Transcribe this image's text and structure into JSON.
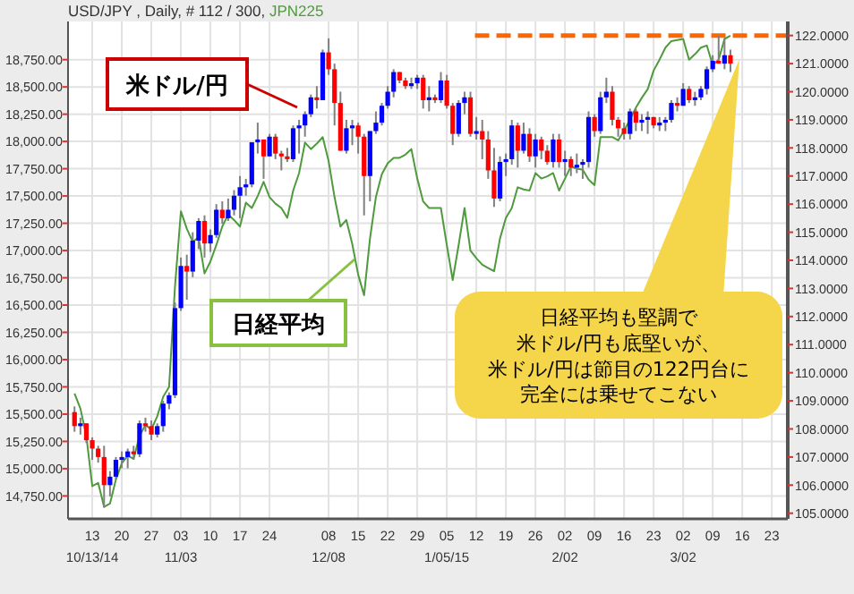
{
  "chart_data": {
    "type": "candlestick",
    "title": "USD/JPY , Daily, # 112 / 300,",
    "categories": [
      null,
      null,
      null,
      "13\n10/13/14",
      null,
      null,
      null,
      null,
      "20",
      null,
      null,
      null,
      null,
      "27",
      null,
      null,
      null,
      null,
      "03\n11/03",
      null,
      null,
      null,
      null,
      "10",
      null,
      null,
      null,
      null,
      "17",
      null,
      null,
      null,
      null,
      "24",
      null,
      null,
      null,
      null,
      null,
      null,
      null,
      null,
      null,
      "08\n12/08",
      null,
      null,
      null,
      null,
      "15",
      null,
      null,
      null,
      null,
      "22",
      null,
      null,
      null,
      null,
      "29",
      null,
      null,
      null,
      null,
      "05\n1/05/15",
      null,
      null,
      null,
      null,
      "12",
      null,
      null,
      null,
      null,
      "19",
      null,
      null,
      null,
      null,
      "26",
      null,
      null,
      null,
      null,
      "02\n2/02",
      null,
      null,
      null,
      null,
      "09",
      null,
      null,
      null,
      null,
      "16",
      null,
      null,
      null,
      null,
      "23",
      null,
      null,
      null,
      null,
      "02\n3/02",
      null,
      null,
      null,
      null,
      "09",
      null,
      null,
      null,
      null,
      "16",
      null,
      null,
      null,
      null,
      "23",
      null,
      null
    ],
    "series": [
      {
        "type": "candlestick",
        "axis": "y2",
        "ohlc": [
          [
            108.6,
            108.8,
            107.9,
            108.1
          ],
          [
            108.1,
            108.4,
            107.8,
            108.2
          ],
          [
            108.2,
            108.2,
            107.5,
            107.6
          ],
          [
            107.6,
            107.7,
            106.9,
            107.3
          ],
          [
            107.3,
            107.4,
            106.8,
            107.0
          ],
          [
            107.0,
            107.4,
            105.2,
            106.0
          ],
          [
            106.0,
            106.5,
            105.6,
            106.3
          ],
          [
            106.3,
            107.0,
            106.2,
            106.9
          ],
          [
            106.9,
            107.2,
            106.6,
            107.0
          ],
          [
            107.0,
            107.3,
            106.6,
            107.2
          ],
          [
            107.2,
            107.4,
            106.9,
            107.1
          ],
          [
            107.1,
            108.3,
            107.0,
            108.2
          ],
          [
            108.2,
            108.4,
            107.9,
            108.1
          ],
          [
            108.1,
            108.3,
            107.6,
            107.8
          ],
          [
            107.8,
            108.2,
            107.7,
            108.1
          ],
          [
            108.1,
            109.0,
            107.9,
            108.9
          ],
          [
            108.9,
            109.3,
            108.7,
            109.2
          ],
          [
            109.2,
            112.5,
            109.1,
            112.3
          ],
          [
            112.3,
            114.1,
            112.2,
            113.8
          ],
          [
            113.8,
            114.2,
            112.6,
            113.6
          ],
          [
            113.6,
            115.0,
            113.4,
            114.7
          ],
          [
            114.7,
            115.5,
            114.4,
            115.4
          ],
          [
            115.4,
            115.6,
            114.1,
            114.6
          ],
          [
            114.6,
            115.1,
            114.3,
            114.9
          ],
          [
            114.9,
            116.0,
            114.8,
            115.8
          ],
          [
            115.8,
            116.1,
            115.3,
            115.5
          ],
          [
            115.5,
            116.2,
            115.4,
            115.8
          ],
          [
            115.8,
            116.5,
            115.6,
            116.3
          ],
          [
            116.3,
            117.0,
            115.5,
            116.6
          ],
          [
            116.6,
            116.9,
            116.3,
            116.7
          ],
          [
            116.7,
            118.2,
            116.6,
            118.2
          ],
          [
            118.2,
            118.9,
            117.8,
            118.3
          ],
          [
            118.3,
            118.3,
            116.9,
            117.7
          ],
          [
            117.7,
            118.5,
            117.7,
            118.4
          ],
          [
            118.4,
            118.5,
            117.6,
            117.8
          ],
          [
            117.8,
            117.9,
            117.2,
            117.7
          ],
          [
            117.7,
            118.0,
            117.5,
            117.6
          ],
          [
            117.6,
            118.8,
            117.5,
            118.7
          ],
          [
            118.7,
            119.0,
            117.8,
            118.8
          ],
          [
            118.8,
            119.3,
            118.4,
            119.2
          ],
          [
            119.2,
            119.9,
            119.1,
            119.8
          ],
          [
            119.8,
            120.2,
            119.4,
            119.7
          ],
          [
            119.7,
            121.5,
            119.7,
            121.4
          ],
          [
            121.4,
            121.9,
            120.6,
            120.8
          ],
          [
            120.8,
            121.0,
            118.8,
            119.6
          ],
          [
            119.6,
            120.0,
            117.9,
            117.9
          ],
          [
            117.9,
            119.0,
            117.8,
            118.7
          ],
          [
            118.7,
            119.0,
            118.1,
            118.8
          ],
          [
            118.8,
            118.9,
            117.8,
            118.4
          ],
          [
            118.4,
            118.5,
            115.6,
            117.0
          ],
          [
            117.0,
            118.6,
            116.1,
            118.6
          ],
          [
            118.6,
            119.3,
            118.5,
            118.9
          ],
          [
            118.9,
            119.6,
            118.8,
            119.5
          ],
          [
            119.5,
            120.2,
            119.4,
            120.0
          ],
          [
            120.0,
            120.8,
            119.8,
            120.7
          ],
          [
            120.7,
            120.7,
            120.3,
            120.4
          ],
          [
            120.4,
            120.5,
            120.1,
            120.2
          ],
          [
            120.2,
            120.5,
            120.1,
            120.3
          ],
          [
            120.3,
            120.6,
            120.1,
            120.5
          ],
          [
            120.5,
            120.6,
            119.4,
            119.7
          ],
          [
            119.7,
            120.2,
            119.3,
            119.8
          ],
          [
            119.8,
            119.9,
            119.6,
            119.7
          ],
          [
            119.7,
            120.7,
            119.6,
            120.4
          ],
          [
            120.4,
            120.6,
            119.4,
            119.5
          ],
          [
            119.5,
            119.6,
            118.1,
            118.5
          ],
          [
            118.5,
            119.7,
            118.4,
            119.6
          ],
          [
            119.6,
            120.0,
            119.2,
            119.8
          ],
          [
            119.8,
            120.0,
            118.4,
            118.5
          ],
          [
            118.5,
            119.1,
            118.3,
            118.6
          ],
          [
            118.6,
            119.0,
            117.6,
            118.3
          ],
          [
            118.3,
            118.6,
            116.9,
            117.2
          ],
          [
            117.2,
            118.0,
            115.9,
            116.2
          ],
          [
            116.2,
            117.7,
            116.1,
            117.5
          ],
          [
            117.5,
            117.8,
            117.0,
            117.6
          ],
          [
            117.6,
            119.0,
            117.4,
            118.8
          ],
          [
            118.8,
            118.9,
            117.3,
            117.9
          ],
          [
            117.9,
            118.9,
            117.8,
            118.5
          ],
          [
            118.5,
            118.7,
            117.5,
            117.7
          ],
          [
            117.7,
            118.5,
            117.3,
            118.3
          ],
          [
            118.3,
            118.4,
            117.6,
            117.9
          ],
          [
            117.9,
            118.1,
            117.4,
            117.5
          ],
          [
            117.5,
            118.5,
            117.3,
            118.3
          ],
          [
            118.3,
            118.5,
            117.3,
            117.5
          ],
          [
            117.5,
            117.9,
            117.0,
            117.6
          ],
          [
            117.6,
            117.7,
            117.0,
            117.3
          ],
          [
            117.3,
            117.8,
            117.1,
            117.4
          ],
          [
            117.4,
            117.6,
            116.9,
            117.5
          ],
          [
            117.5,
            119.3,
            117.3,
            119.1
          ],
          [
            119.1,
            119.2,
            118.4,
            118.6
          ],
          [
            118.6,
            120.0,
            118.5,
            119.8
          ],
          [
            119.8,
            120.5,
            119.6,
            120.0
          ],
          [
            120.0,
            120.2,
            118.8,
            119.0
          ],
          [
            119.0,
            119.1,
            118.4,
            118.7
          ],
          [
            118.7,
            118.9,
            118.3,
            118.5
          ],
          [
            118.5,
            119.4,
            118.3,
            119.3
          ],
          [
            119.3,
            119.4,
            118.6,
            118.9
          ],
          [
            118.9,
            119.2,
            118.6,
            119.0
          ],
          [
            119.0,
            119.3,
            118.5,
            119.1
          ],
          [
            119.1,
            119.1,
            118.7,
            118.8
          ],
          [
            118.8,
            119.1,
            118.6,
            118.9
          ],
          [
            118.9,
            119.1,
            118.6,
            119.0
          ],
          [
            119.0,
            119.7,
            118.9,
            119.6
          ],
          [
            119.6,
            119.8,
            119.3,
            119.5
          ],
          [
            119.5,
            120.3,
            119.5,
            120.1
          ],
          [
            120.1,
            120.2,
            119.6,
            119.7
          ],
          [
            119.7,
            120.0,
            119.5,
            119.8
          ],
          [
            119.8,
            120.2,
            119.7,
            120.1
          ],
          [
            120.1,
            120.9,
            119.9,
            120.8
          ],
          [
            120.8,
            121.3,
            120.7,
            121.1
          ],
          [
            121.1,
            122.0,
            121.0,
            121.0
          ],
          [
            121.0,
            121.9,
            120.8,
            121.3
          ],
          [
            121.3,
            121.5,
            120.7,
            121.0
          ],
          null,
          null,
          null,
          null,
          null,
          null,
          null,
          null,
          null
        ],
        "colors": [
          "#ff0000",
          "#0000ff",
          "#ff0000",
          "#ff0000",
          "#ff0000",
          "#ff0000",
          "#0000ff",
          "#0000ff",
          "#0000ff",
          "#0000ff",
          "#ff0000",
          "#0000ff",
          "#ff0000",
          "#ff0000",
          "#0000ff",
          "#0000ff",
          "#0000ff",
          "#0000ff",
          "#0000ff",
          "#ff0000",
          "#0000ff",
          "#0000ff",
          "#ff0000",
          "#0000ff",
          "#0000ff",
          "#ff0000",
          "#0000ff",
          "#0000ff",
          "#0000ff",
          "#0000ff",
          "#0000ff",
          "#0000ff",
          "#ff0000",
          "#0000ff",
          "#ff0000",
          "#ff0000",
          "#ff0000",
          "#0000ff",
          "#0000ff",
          "#0000ff",
          "#0000ff",
          "#ff0000",
          "#0000ff",
          "#ff0000",
          "#ff0000",
          "#ff0000",
          "#0000ff",
          "#0000ff",
          "#ff0000",
          "#ff0000",
          "#0000ff",
          "#0000ff",
          "#0000ff",
          "#0000ff",
          "#0000ff",
          "#ff0000",
          "#ff0000",
          "#0000ff",
          "#0000ff",
          "#ff0000",
          "#0000ff",
          "#ff0000",
          "#0000ff",
          "#ff0000",
          "#ff0000",
          "#0000ff",
          "#0000ff",
          "#ff0000",
          "#0000ff",
          "#ff0000",
          "#ff0000",
          "#ff0000",
          "#0000ff",
          "#0000ff",
          "#0000ff",
          "#ff0000",
          "#0000ff",
          "#ff0000",
          "#0000ff",
          "#ff0000",
          "#ff0000",
          "#0000ff",
          "#ff0000",
          "#0000ff",
          "#ff0000",
          "#0000ff",
          "#0000ff",
          "#0000ff",
          "#ff0000",
          "#0000ff",
          "#0000ff",
          "#ff0000",
          "#ff0000",
          "#ff0000",
          "#0000ff",
          "#ff0000",
          "#0000ff",
          "#0000ff",
          "#ff0000",
          "#0000ff",
          "#0000ff",
          "#0000ff",
          "#ff0000",
          "#0000ff",
          "#ff0000",
          "#0000ff",
          "#0000ff",
          "#0000ff",
          "#0000ff",
          "#ff0000",
          "#0000ff",
          "#ff0000",
          null,
          null,
          null,
          null,
          null,
          null,
          null,
          null,
          null
        ]
      },
      {
        "type": "line",
        "name": "JPN225",
        "color": "#4e9a3c",
        "values": [
          15690,
          15550,
          15300,
          14840,
          14870,
          14650,
          14680,
          14900,
          15050,
          15120,
          15090,
          15300,
          15400,
          15360,
          15480,
          15660,
          15750,
          16670,
          17360,
          17200,
          17080,
          17120,
          16790,
          16900,
          17050,
          17220,
          17330,
          17280,
          17220,
          17440,
          17390,
          17500,
          17630,
          17490,
          17430,
          17390,
          17300,
          17550,
          17710,
          17990,
          17930,
          17980,
          18040,
          17820,
          17490,
          17220,
          17280,
          17060,
          16780,
          16590,
          17110,
          17490,
          17700,
          17800,
          17850,
          17850,
          17880,
          17930,
          17660,
          17450,
          17390,
          17390,
          17390,
          17050,
          16730,
          17050,
          17390,
          17000,
          16930,
          16870,
          16840,
          16810,
          17110,
          17300,
          17390,
          17580,
          17560,
          17550,
          17710,
          17660,
          17680,
          17710,
          17550,
          17660,
          17770,
          17750,
          17740,
          17650,
          17600,
          18040,
          18040,
          18040,
          18010,
          18100,
          18200,
          18310,
          18400,
          18480,
          18650,
          18750,
          18860,
          18920,
          18930,
          18940,
          18750,
          18800,
          18860,
          18880,
          18700,
          18750,
          18940,
          18970,
          null,
          null,
          null,
          null,
          null,
          null,
          null,
          null,
          null
        ]
      }
    ],
    "ylim": [
      14540,
      19100
    ],
    "yticks": [
      {
        "value": 14750,
        "label": "14,750.00"
      },
      {
        "value": 15000,
        "label": "15,000.00"
      },
      {
        "value": 15250,
        "label": "15,250.00"
      },
      {
        "value": 15500,
        "label": "15,500.00"
      },
      {
        "value": 15750,
        "label": "15,750.00"
      },
      {
        "value": 16000,
        "label": "16,000.00"
      },
      {
        "value": 16250,
        "label": "16,250.00"
      },
      {
        "value": 16500,
        "label": "16,500.00"
      },
      {
        "value": 16750,
        "label": "16,750.00"
      },
      {
        "value": 17000,
        "label": "17,000.00"
      },
      {
        "value": 17250,
        "label": "17,250.00"
      },
      {
        "value": 17500,
        "label": "17,500.00"
      },
      {
        "value": 17750,
        "label": "17,750.00"
      },
      {
        "value": 18000,
        "label": "18,000.00"
      },
      {
        "value": 18250,
        "label": "18,250.00"
      },
      {
        "value": 18500,
        "label": "18,500.00"
      },
      {
        "value": 18750,
        "label": "18,750.00"
      }
    ],
    "y2lim": [
      104.8,
      122.5
    ],
    "y2ticks": [
      {
        "value": 105,
        "label": "105.0000"
      },
      {
        "value": 106,
        "label": "106.0000"
      },
      {
        "value": 107,
        "label": "107.0000"
      },
      {
        "value": 108,
        "label": "108.0000"
      },
      {
        "value": 109,
        "label": "109.0000"
      },
      {
        "value": 110,
        "label": "110.0000"
      },
      {
        "value": 111,
        "label": "111.0000"
      },
      {
        "value": 112,
        "label": "112.0000"
      },
      {
        "value": 113,
        "label": "113.0000"
      },
      {
        "value": 114,
        "label": "114.0000"
      },
      {
        "value": 115,
        "label": "115.0000"
      },
      {
        "value": 116,
        "label": "116.0000"
      },
      {
        "value": 117,
        "label": "117.0000"
      },
      {
        "value": 118,
        "label": "118.0000"
      },
      {
        "value": 119,
        "label": "119.0000"
      },
      {
        "value": 120,
        "label": "120.0000"
      },
      {
        "value": 121,
        "label": "121.0000"
      },
      {
        "value": 122,
        "label": "122.0000"
      }
    ],
    "ref_lines": [
      {
        "axis": "y2",
        "value": 122,
        "color": "#ff6600",
        "line_style": "dashed"
      }
    ],
    "grid": true,
    "annotations": [
      "米ドル/円",
      "日経平均",
      "日経平均も堅調で",
      "米ドル/円も底堅いが、",
      "米ドル/円は節目の122円台に",
      "完全には乗せてこない"
    ]
  }
}
